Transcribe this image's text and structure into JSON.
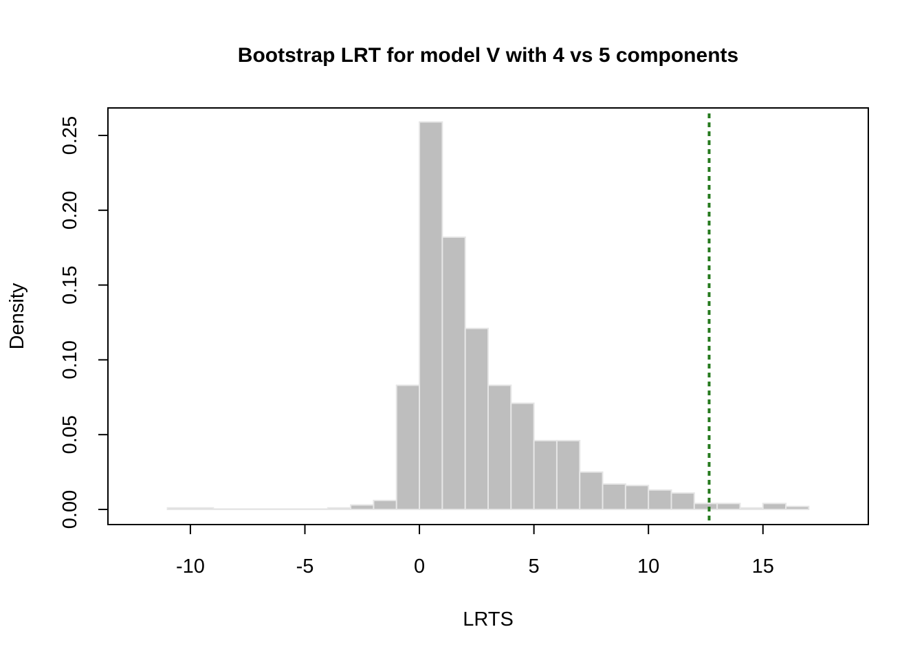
{
  "chart_data": {
    "type": "bar",
    "title": "Bootstrap LRT for model V with 4 vs 5 components",
    "xlabel": "LRTS",
    "ylabel": "Density",
    "xlim": [
      -13.6,
      19.6
    ],
    "ylim": [
      0,
      0.26
    ],
    "x_ticks": [
      -10,
      -5,
      0,
      5,
      10,
      15
    ],
    "x_tick_labels": [
      "-10",
      "-5",
      "0",
      "5",
      "10",
      "15"
    ],
    "y_ticks": [
      0,
      0.05,
      0.1,
      0.15,
      0.2,
      0.25
    ],
    "y_tick_labels": [
      "0.00",
      "0.05",
      "0.10",
      "0.15",
      "0.20",
      "0.25"
    ],
    "bins": [
      {
        "x0": -11,
        "x1": -9,
        "density": 0.001
      },
      {
        "x0": -9,
        "x1": -4,
        "density": 0.0003
      },
      {
        "x0": -4,
        "x1": -3,
        "density": 0.001
      },
      {
        "x0": -3,
        "x1": -2,
        "density": 0.003
      },
      {
        "x0": -2,
        "x1": -1,
        "density": 0.006
      },
      {
        "x0": -1,
        "x1": 0,
        "density": 0.083
      },
      {
        "x0": 0,
        "x1": 1,
        "density": 0.259
      },
      {
        "x0": 1,
        "x1": 2,
        "density": 0.182
      },
      {
        "x0": 2,
        "x1": 3,
        "density": 0.121
      },
      {
        "x0": 3,
        "x1": 4,
        "density": 0.083
      },
      {
        "x0": 4,
        "x1": 5,
        "density": 0.071
      },
      {
        "x0": 5,
        "x1": 6,
        "density": 0.046
      },
      {
        "x0": 6,
        "x1": 7,
        "density": 0.046
      },
      {
        "x0": 7,
        "x1": 8,
        "density": 0.025
      },
      {
        "x0": 8,
        "x1": 9,
        "density": 0.017
      },
      {
        "x0": 9,
        "x1": 10,
        "density": 0.016
      },
      {
        "x0": 10,
        "x1": 11,
        "density": 0.013
      },
      {
        "x0": 11,
        "x1": 12,
        "density": 0.011
      },
      {
        "x0": 12,
        "x1": 13,
        "density": 0.004
      },
      {
        "x0": 13,
        "x1": 14,
        "density": 0.004
      },
      {
        "x0": 14,
        "x1": 15,
        "density": 0.001
      },
      {
        "x0": 15,
        "x1": 16,
        "density": 0.004
      },
      {
        "x0": 16,
        "x1": 17,
        "density": 0.002
      }
    ],
    "observed_lrts": 12.65,
    "bar_fill": "#bebebe",
    "bar_border": "#e6e6e6",
    "reference_line_color": "#267a1e",
    "grid": false
  }
}
